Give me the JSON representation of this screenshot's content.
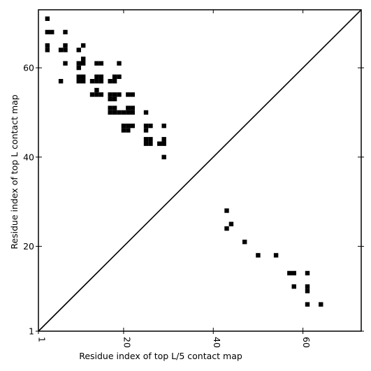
{
  "chart_data": {
    "type": "scatter",
    "marker": "square",
    "xlabel": "Residue index of top L/5 contact map",
    "ylabel": "Residue index of top L contact map",
    "xlim": [
      1,
      73
    ],
    "ylim": [
      1,
      73
    ],
    "xticks": [
      1,
      20,
      40,
      60
    ],
    "yticks": [
      1,
      20,
      40,
      60
    ],
    "diagonal": true,
    "grid": false,
    "color": "#000000",
    "series": [
      {
        "name": "",
        "points": [
          [
            3,
            71
          ],
          [
            3,
            68
          ],
          [
            4,
            68
          ],
          [
            7,
            68
          ],
          [
            3,
            65
          ],
          [
            3,
            64
          ],
          [
            6,
            64
          ],
          [
            7,
            65
          ],
          [
            7,
            64
          ],
          [
            11,
            65
          ],
          [
            10,
            64
          ],
          [
            11,
            62
          ],
          [
            11,
            61
          ],
          [
            10,
            61
          ],
          [
            10,
            60
          ],
          [
            7,
            61
          ],
          [
            6,
            57
          ],
          [
            10,
            58
          ],
          [
            11,
            58
          ],
          [
            10,
            57
          ],
          [
            11,
            57
          ],
          [
            14,
            61
          ],
          [
            15,
            61
          ],
          [
            19,
            61
          ],
          [
            14,
            58
          ],
          [
            15,
            58
          ],
          [
            14,
            57
          ],
          [
            15,
            57
          ],
          [
            13,
            57
          ],
          [
            18,
            58
          ],
          [
            19,
            58
          ],
          [
            17,
            57
          ],
          [
            18,
            57
          ],
          [
            14,
            55
          ],
          [
            13,
            54
          ],
          [
            14,
            54
          ],
          [
            15,
            54
          ],
          [
            17,
            54
          ],
          [
            18,
            54
          ],
          [
            19,
            54
          ],
          [
            17,
            53
          ],
          [
            18,
            53
          ],
          [
            21,
            54
          ],
          [
            22,
            54
          ],
          [
            17,
            51
          ],
          [
            18,
            51
          ],
          [
            21,
            51
          ],
          [
            22,
            51
          ],
          [
            17,
            50
          ],
          [
            18,
            50
          ],
          [
            19,
            50
          ],
          [
            20,
            50
          ],
          [
            21,
            50
          ],
          [
            22,
            50
          ],
          [
            25,
            50
          ],
          [
            21,
            47
          ],
          [
            22,
            47
          ],
          [
            20,
            47
          ],
          [
            20,
            46
          ],
          [
            21,
            46
          ],
          [
            25,
            47
          ],
          [
            26,
            47
          ],
          [
            25,
            46
          ],
          [
            29,
            47
          ],
          [
            25,
            44
          ],
          [
            26,
            44
          ],
          [
            25,
            43
          ],
          [
            26,
            43
          ],
          [
            28,
            43
          ],
          [
            29,
            43
          ],
          [
            29,
            44
          ],
          [
            29,
            40
          ],
          [
            43,
            28
          ],
          [
            43,
            24
          ],
          [
            44,
            25
          ],
          [
            47,
            21
          ],
          [
            50,
            18
          ],
          [
            54,
            18
          ],
          [
            57,
            14
          ],
          [
            58,
            14
          ],
          [
            61,
            14
          ],
          [
            58,
            11
          ],
          [
            61,
            11
          ],
          [
            61,
            10
          ],
          [
            61,
            7
          ],
          [
            64,
            7
          ]
        ]
      }
    ]
  }
}
